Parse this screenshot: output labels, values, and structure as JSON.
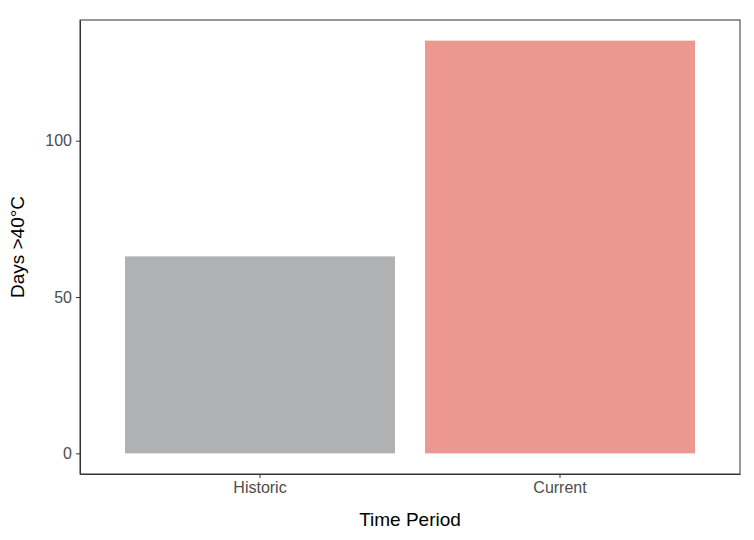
{
  "chart_data": {
    "type": "bar",
    "categories": [
      "Historic",
      "Current"
    ],
    "values": [
      63,
      132
    ],
    "colors": [
      "#b0b1b3",
      "#ec9790"
    ],
    "x_label": "Time Period",
    "y_label": "Days >40°C",
    "ylim": [
      -6.6,
      138.6
    ],
    "yticks": [
      0,
      50,
      100
    ],
    "grid": false
  }
}
